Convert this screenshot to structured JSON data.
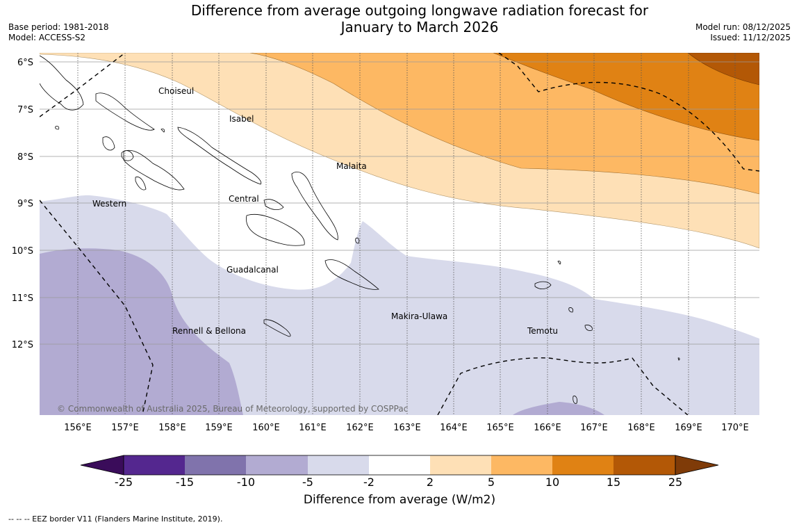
{
  "header": {
    "title_line1": "Difference from average outgoing longwave radiation forecast for",
    "title_line2": "January to March 2026",
    "base_period": "Base period: 1981-2018",
    "model": "Model: ACCESS-S2",
    "model_run": "Model run: 08/12/2025",
    "issued": "Issued: 11/12/2025"
  },
  "map": {
    "lat_labels": [
      "6°S",
      "7°S",
      "8°S",
      "9°S",
      "10°S",
      "11°S",
      "12°S"
    ],
    "lon_labels": [
      "156°E",
      "157°E",
      "158°E",
      "159°E",
      "160°E",
      "161°E",
      "162°E",
      "163°E",
      "164°E",
      "165°E",
      "166°E",
      "167°E",
      "168°E",
      "169°E",
      "170°E"
    ],
    "regions": [
      "Choiseul",
      "Isabel",
      "Malaita",
      "Western",
      "Central",
      "Guadalcanal",
      "Makira-Ulawa",
      "Rennell & Bellona",
      "Temotu"
    ],
    "credit": "© Commonwealth of Australia 2025, Bureau of Meteorology, supported by COSPPac"
  },
  "colorbar": {
    "ticks": [
      "-25",
      "-15",
      "-10",
      "-5",
      "-2",
      "2",
      "5",
      "10",
      "15",
      "25"
    ],
    "label": "Difference from average (W/m2)",
    "colors": {
      "below_-25": "#3a0c5a",
      "-25_-15": "#54278f",
      "-15_-10": "#8073ac",
      "-10_-5": "#b2abd2",
      "-5_-2": "#d8daeb",
      "-2_2": "#ffffff",
      "2_5": "#fee0b6",
      "5_10": "#fdb863",
      "10_15": "#e08214",
      "15_25": "#b35806",
      "above_25": "#7f3b08"
    }
  },
  "footer": {
    "legend_text": "--  --  -- EEZ border V11 (Flanders Marine Institute, 2019)."
  }
}
